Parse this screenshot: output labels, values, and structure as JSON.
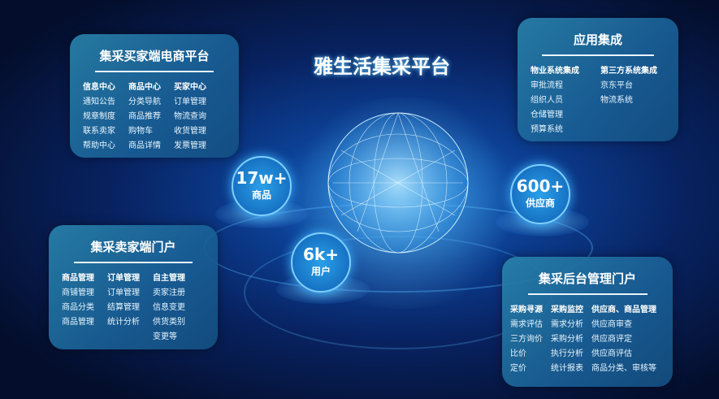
{
  "title": "雅生活集采平台",
  "stats": [
    {
      "value": "17w+",
      "label": "商品"
    },
    {
      "value": "600+",
      "label": "供应商"
    },
    {
      "value": "6k+",
      "label": "用户"
    }
  ],
  "panels": {
    "buyer": {
      "title": "集采买家端电商平台",
      "columns": [
        [
          "信息中心",
          "通知公告",
          "规章制度",
          "联系卖家",
          "帮助中心"
        ],
        [
          "商品中心",
          "分类导航",
          "商品推荐",
          "购物车",
          "商品详情"
        ],
        [
          "买家中心",
          "订单管理",
          "物流查询",
          "收货管理",
          "发票管理"
        ]
      ]
    },
    "integration": {
      "title": "应用集成",
      "columns": [
        [
          "物业系统集成",
          "审批流程",
          "组织人员",
          "仓储管理",
          "预算系统"
        ],
        [
          "第三方系统集成",
          "京东平台",
          "物流系统"
        ]
      ]
    },
    "seller": {
      "title": "集采卖家端门户",
      "columns": [
        [
          "商品管理",
          "商铺管理",
          "商品分类",
          "商品管理"
        ],
        [
          "订单管理",
          "订单管理",
          "结算管理",
          "统计分析"
        ],
        [
          "自主管理",
          "卖家注册",
          "信息变更",
          "供货类别",
          "变更等"
        ]
      ]
    },
    "admin": {
      "title": "集采后台管理门户",
      "columns": [
        [
          "采购寻源",
          "需求评估",
          "三方询价",
          "比价",
          "定价"
        ],
        [
          "采购监控",
          "需求分析",
          "采购分析",
          "执行分析",
          "统计报表"
        ],
        [
          "供应商、商品管理",
          "供应商审查",
          "供应商评定",
          "供应商评估",
          "商品分类、审核等"
        ]
      ]
    }
  },
  "colors": {
    "background": "#061233",
    "accent": "#3bb4ff",
    "panel": "#2a82aa"
  }
}
